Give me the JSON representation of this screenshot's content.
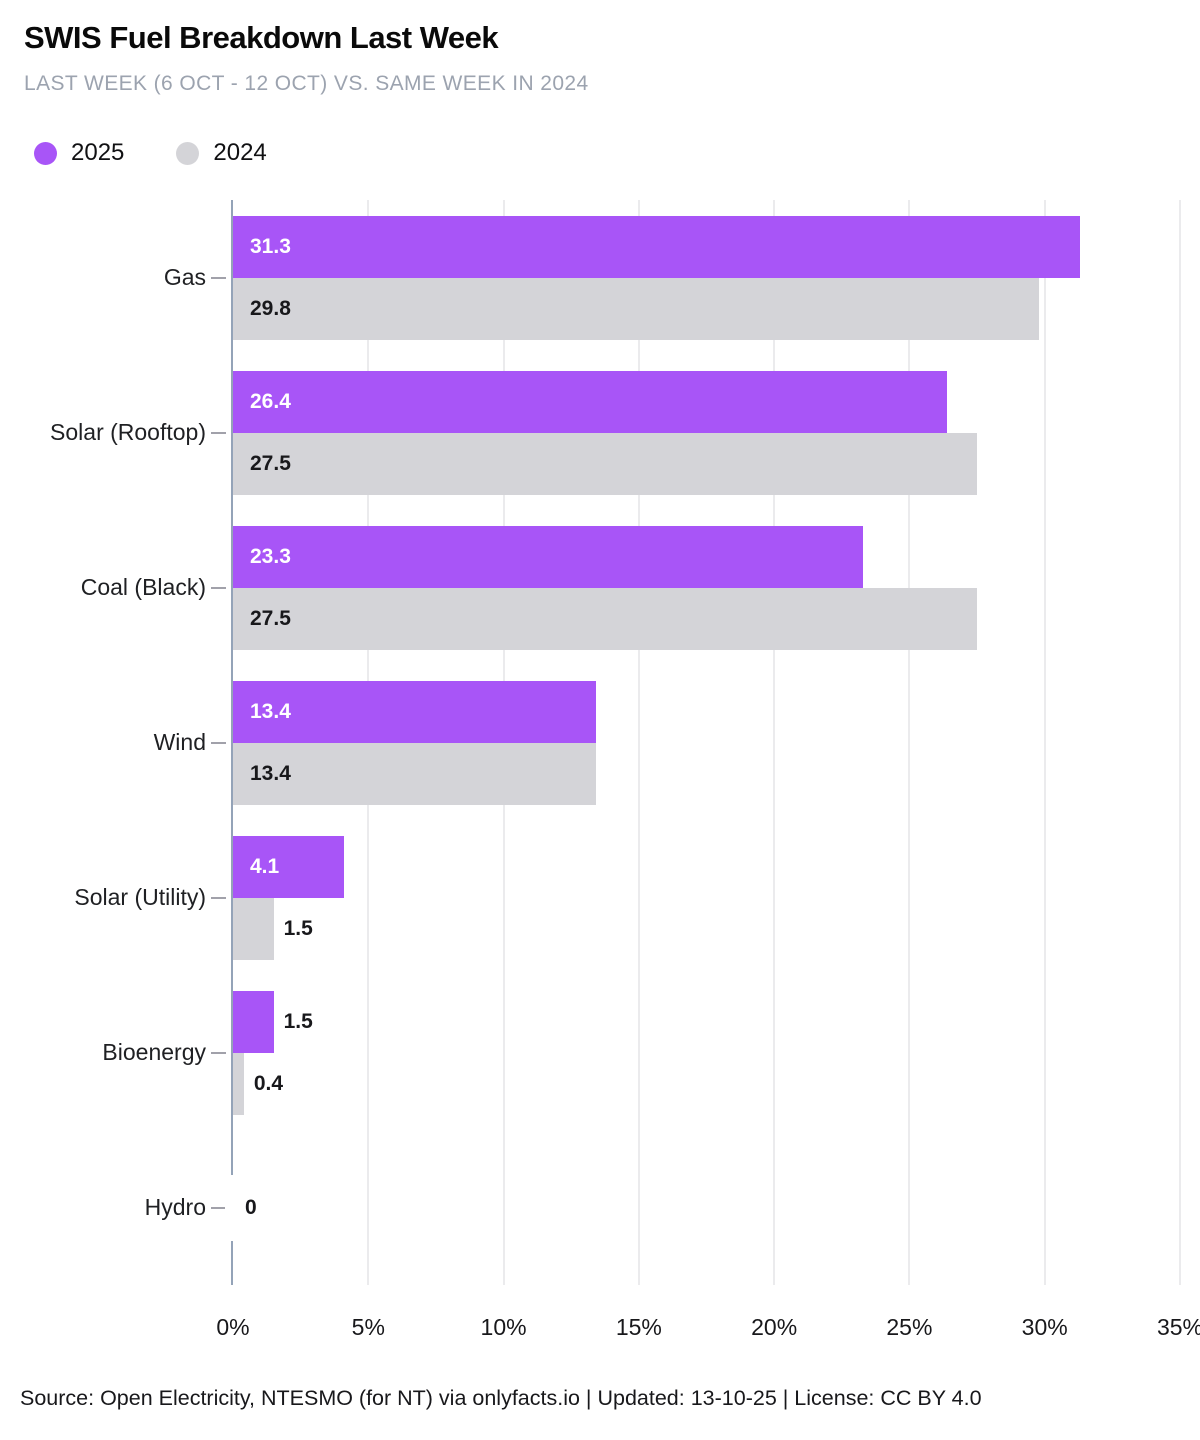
{
  "header": {
    "title": "SWIS Fuel Breakdown Last Week",
    "subtitle": "LAST WEEK (6 OCT - 12 OCT) VS. SAME WEEK IN 2024"
  },
  "legend": {
    "items": [
      {
        "label": "2025",
        "color": "#a855f7"
      },
      {
        "label": "2024",
        "color": "#d4d4d8"
      }
    ]
  },
  "chart_data": {
    "type": "bar",
    "orientation": "horizontal",
    "title": "SWIS Fuel Breakdown Last Week",
    "subtitle": "LAST WEEK (6 OCT - 12 OCT) VS. SAME WEEK IN 2024",
    "unit": "%",
    "categories": [
      "Gas",
      "Solar (Rooftop)",
      "Coal (Black)",
      "Wind",
      "Solar (Utility)",
      "Bioenergy",
      "Hydro"
    ],
    "series": [
      {
        "name": "2025",
        "color": "#a855f7",
        "inside_label_color": "#ffffff",
        "values": [
          31.3,
          26.4,
          23.3,
          13.4,
          4.1,
          1.5,
          0
        ],
        "labels": [
          "31.3",
          "26.4",
          "23.3",
          "13.4",
          "4.1",
          "1.5",
          "0"
        ]
      },
      {
        "name": "2024",
        "color": "#d4d4d8",
        "inside_label_color": "#18181b",
        "values": [
          29.8,
          27.5,
          27.5,
          13.4,
          1.5,
          0.4,
          0
        ],
        "labels": [
          "29.8",
          "27.5",
          "27.5",
          "13.4",
          "1.5",
          "0.4",
          "0"
        ]
      }
    ],
    "zero_label": "0",
    "x_ticks": [
      "0%",
      "5%",
      "10%",
      "15%",
      "20%",
      "25%",
      "30%",
      "35%"
    ],
    "x_tick_values": [
      0,
      5,
      10,
      15,
      20,
      25,
      30,
      35
    ],
    "xlim": [
      0,
      35
    ],
    "grid": true,
    "legend_position": "top-left",
    "outside_label_color": "#18181b"
  },
  "footer": {
    "text": "Source: Open Electricity, NTESMO (for NT) via onlyfacts.io | Updated: 13-10-25 | License: CC BY 4.0"
  }
}
